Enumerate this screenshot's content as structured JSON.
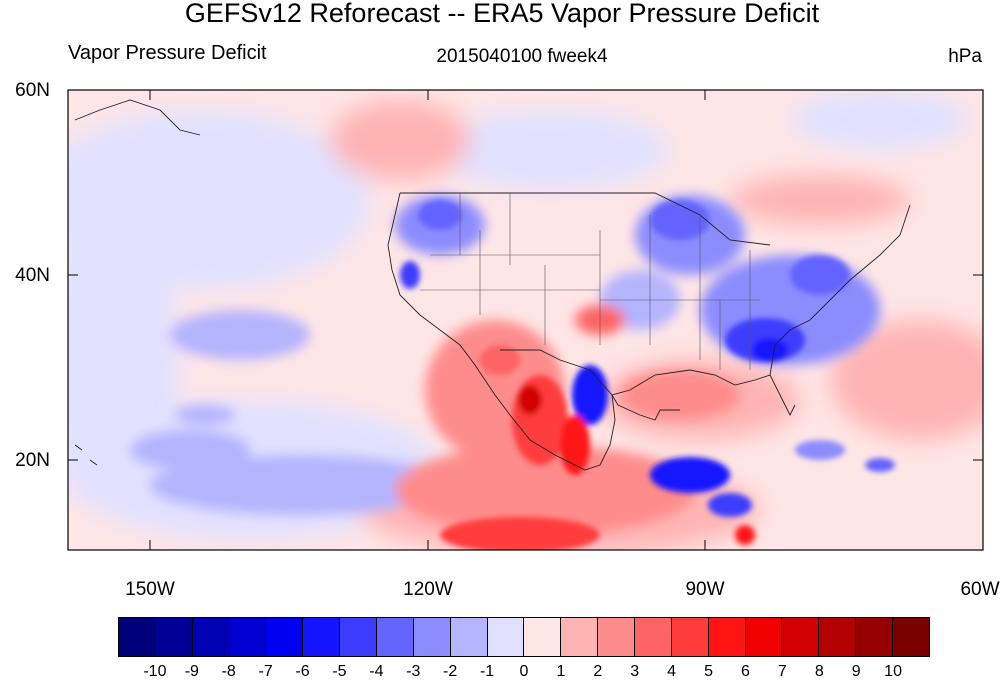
{
  "title": "GEFSv12 Reforecast -- ERA5 Vapor Pressure Deficit",
  "left_string": "Vapor Pressure Deficit",
  "center_string": "2015040100 fweek4",
  "right_string": "hPa",
  "lat_labels": [
    "60N",
    "40N",
    "20N"
  ],
  "lon_labels": [
    "150W",
    "120W",
    "90W",
    "60W"
  ],
  "colorbar": {
    "colors": [
      "#00007a",
      "#000096",
      "#0000b4",
      "#0000d2",
      "#0000f0",
      "#1414ff",
      "#3c3cff",
      "#6464ff",
      "#8c8cff",
      "#b4b4ff",
      "#e1e1ff",
      "#ffe6e6",
      "#ffb4b4",
      "#ff8c8c",
      "#ff6464",
      "#ff3c3c",
      "#ff1414",
      "#f00000",
      "#d20000",
      "#b40000",
      "#960000",
      "#7a0000"
    ],
    "labels": [
      "-10",
      "-9",
      "-8",
      "-7",
      "-6",
      "-5",
      "-4",
      "-3",
      "-2",
      "-1",
      "0",
      "1",
      "2",
      "3",
      "4",
      "5",
      "6",
      "7",
      "8",
      "9",
      "10"
    ]
  }
}
